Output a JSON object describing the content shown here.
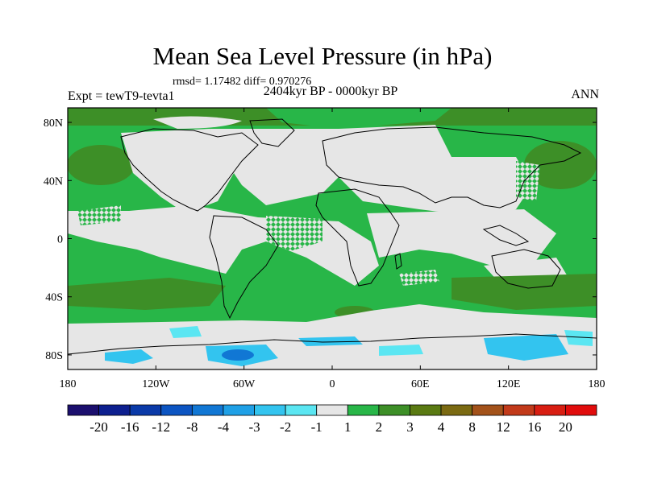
{
  "figure": {
    "title": "Mean Sea Level Pressure (in hPa)",
    "stats": "rmsd= 1.17482 diff= 0.970276",
    "experiment": "Expt = tewT9-tevta1",
    "period": "2404kyr BP - 0000kyr BP",
    "season": "ANN"
  },
  "map": {
    "lon_ticks": [
      "180",
      "120W",
      "60W",
      "0",
      "60E",
      "120E",
      "180"
    ],
    "lat_ticks": [
      "80N",
      "40N",
      "0",
      "40S",
      "80S"
    ],
    "lon_tick_values": [
      -180,
      -120,
      -60,
      0,
      60,
      120,
      180
    ],
    "lat_tick_values": [
      80,
      40,
      0,
      -40,
      -80
    ],
    "lon_range": [
      -180,
      180
    ],
    "lat_range": [
      -90,
      90
    ]
  },
  "colorbar": {
    "labels": [
      "-20",
      "-16",
      "-12",
      "-8",
      "-4",
      "-3",
      "-2",
      "-1",
      "1",
      "2",
      "3",
      "4",
      "8",
      "12",
      "16",
      "20"
    ],
    "colors": [
      "#1b0f6e",
      "#0d1f8f",
      "#0a3aa8",
      "#0c55c2",
      "#1177d4",
      "#1fa0e6",
      "#33c4ef",
      "#5be6f2",
      "#e6e6e6",
      "#28b648",
      "#3d8f27",
      "#5a7a12",
      "#7b6a12",
      "#a3521a",
      "#c23a1a",
      "#d81e12",
      "#e10c0c"
    ]
  },
  "palette": {
    "land": "#e6e6e6",
    "green": "#28b648",
    "darkgreen": "#3d8f27",
    "olive": "#5a7a12",
    "cyan": "#33c4ef",
    "lightcyan": "#5be6f2",
    "blue": "#1177d4",
    "coast": "#000000"
  }
}
